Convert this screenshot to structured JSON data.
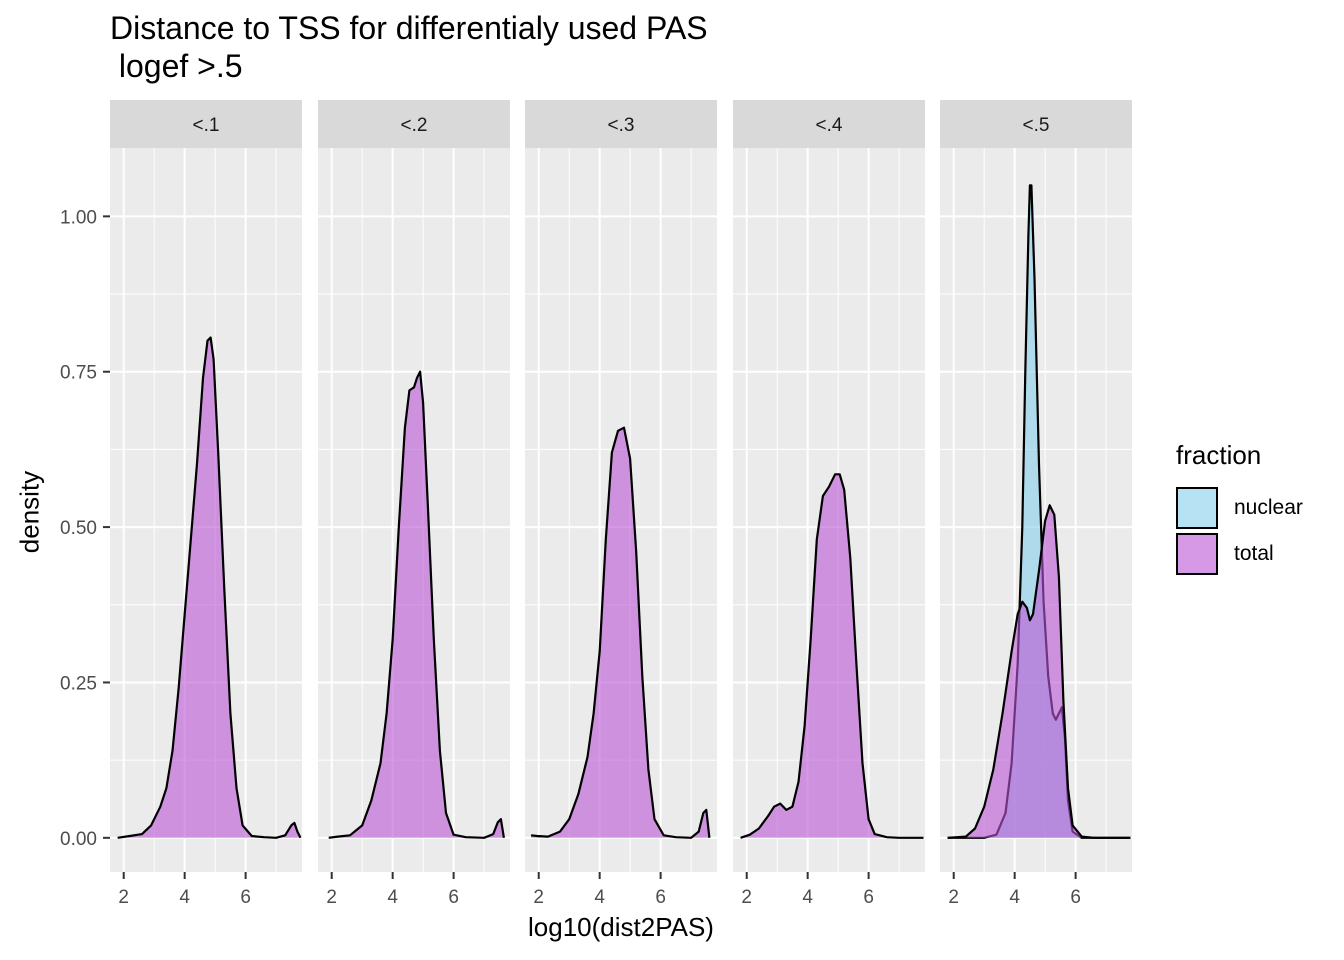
{
  "chart_data": {
    "type": "density",
    "title": "Distance to TSS for differentialy used PAS",
    "subtitle": "logef >.5",
    "xlabel": "log10(dist2PAS)",
    "ylabel": "density",
    "xlim": [
      1.55,
      7.85
    ],
    "ylim": [
      -0.055,
      1.11
    ],
    "x_ticks": [
      2,
      4,
      6
    ],
    "y_ticks": [
      0,
      0.25,
      0.5,
      0.75,
      1.0
    ],
    "y_tick_labels": [
      "0.00",
      "0.25",
      "0.50",
      "0.75",
      "1.00"
    ],
    "legend": {
      "title": "fraction",
      "position": "right",
      "entries": [
        {
          "name": "nuclear",
          "color": "#87CEEB"
        },
        {
          "name": "total",
          "color": "#BA55D3"
        }
      ]
    },
    "fill_alpha": 0.6,
    "panels": [
      {
        "label": "<.1",
        "series": [
          {
            "name": "total",
            "points": [
              [
                1.8,
                0
              ],
              [
                2.2,
                0.003
              ],
              [
                2.6,
                0.006
              ],
              [
                2.9,
                0.02
              ],
              [
                3.2,
                0.05
              ],
              [
                3.4,
                0.08
              ],
              [
                3.6,
                0.14
              ],
              [
                3.8,
                0.24
              ],
              [
                4.0,
                0.36
              ],
              [
                4.2,
                0.48
              ],
              [
                4.4,
                0.6
              ],
              [
                4.6,
                0.74
              ],
              [
                4.75,
                0.8
              ],
              [
                4.85,
                0.805
              ],
              [
                4.95,
                0.77
              ],
              [
                5.1,
                0.62
              ],
              [
                5.3,
                0.4
              ],
              [
                5.5,
                0.2
              ],
              [
                5.7,
                0.08
              ],
              [
                5.9,
                0.02
              ],
              [
                6.2,
                0.003
              ],
              [
                6.6,
                0.001
              ],
              [
                7.0,
                0
              ],
              [
                7.3,
                0.004
              ],
              [
                7.5,
                0.02
              ],
              [
                7.6,
                0.024
              ],
              [
                7.7,
                0.01
              ],
              [
                7.8,
                0
              ]
            ]
          }
        ]
      },
      {
        "label": "<.2",
        "series": [
          {
            "name": "total",
            "points": [
              [
                1.9,
                0
              ],
              [
                2.2,
                0.002
              ],
              [
                2.6,
                0.004
              ],
              [
                3.0,
                0.02
              ],
              [
                3.3,
                0.06
              ],
              [
                3.6,
                0.12
              ],
              [
                3.8,
                0.2
              ],
              [
                4.0,
                0.32
              ],
              [
                4.2,
                0.5
              ],
              [
                4.4,
                0.66
              ],
              [
                4.55,
                0.72
              ],
              [
                4.7,
                0.725
              ],
              [
                4.8,
                0.74
              ],
              [
                4.9,
                0.75
              ],
              [
                5.0,
                0.7
              ],
              [
                5.15,
                0.54
              ],
              [
                5.35,
                0.32
              ],
              [
                5.55,
                0.14
              ],
              [
                5.75,
                0.04
              ],
              [
                6.0,
                0.005
              ],
              [
                6.4,
                0.001
              ],
              [
                7.0,
                0
              ],
              [
                7.3,
                0.006
              ],
              [
                7.45,
                0.025
              ],
              [
                7.55,
                0.03
              ],
              [
                7.65,
                0
              ]
            ]
          }
        ]
      },
      {
        "label": "<.3",
        "series": [
          {
            "name": "total",
            "points": [
              [
                1.75,
                0.004
              ],
              [
                1.95,
                0.003
              ],
              [
                2.3,
                0.002
              ],
              [
                2.7,
                0.01
              ],
              [
                3.0,
                0.03
              ],
              [
                3.3,
                0.07
              ],
              [
                3.6,
                0.13
              ],
              [
                3.8,
                0.2
              ],
              [
                4.0,
                0.3
              ],
              [
                4.2,
                0.48
              ],
              [
                4.4,
                0.62
              ],
              [
                4.6,
                0.655
              ],
              [
                4.8,
                0.66
              ],
              [
                5.0,
                0.61
              ],
              [
                5.2,
                0.46
              ],
              [
                5.4,
                0.26
              ],
              [
                5.6,
                0.11
              ],
              [
                5.8,
                0.03
              ],
              [
                6.1,
                0.004
              ],
              [
                6.5,
                0.001
              ],
              [
                7.0,
                0
              ],
              [
                7.25,
                0.01
              ],
              [
                7.4,
                0.04
              ],
              [
                7.5,
                0.045
              ],
              [
                7.6,
                0
              ]
            ]
          }
        ]
      },
      {
        "label": "<.4",
        "series": [
          {
            "name": "total",
            "points": [
              [
                1.8,
                0
              ],
              [
                2.1,
                0.005
              ],
              [
                2.4,
                0.015
              ],
              [
                2.7,
                0.035
              ],
              [
                2.9,
                0.05
              ],
              [
                3.1,
                0.055
              ],
              [
                3.3,
                0.045
              ],
              [
                3.5,
                0.05
              ],
              [
                3.7,
                0.09
              ],
              [
                3.9,
                0.18
              ],
              [
                4.1,
                0.32
              ],
              [
                4.3,
                0.48
              ],
              [
                4.5,
                0.55
              ],
              [
                4.7,
                0.565
              ],
              [
                4.9,
                0.585
              ],
              [
                5.05,
                0.585
              ],
              [
                5.2,
                0.56
              ],
              [
                5.4,
                0.45
              ],
              [
                5.6,
                0.28
              ],
              [
                5.8,
                0.12
              ],
              [
                6.0,
                0.03
              ],
              [
                6.2,
                0.006
              ],
              [
                6.6,
                0.001
              ],
              [
                7.0,
                0
              ],
              [
                7.8,
                0
              ]
            ]
          }
        ]
      },
      {
        "label": "<.5",
        "series": [
          {
            "name": "nuclear",
            "points": [
              [
                1.8,
                0
              ],
              [
                3.0,
                0
              ],
              [
                3.4,
                0.005
              ],
              [
                3.7,
                0.04
              ],
              [
                3.9,
                0.12
              ],
              [
                4.1,
                0.28
              ],
              [
                4.25,
                0.5
              ],
              [
                4.35,
                0.75
              ],
              [
                4.45,
                0.97
              ],
              [
                4.5,
                1.05
              ],
              [
                4.55,
                1.05
              ],
              [
                4.65,
                0.9
              ],
              [
                4.8,
                0.6
              ],
              [
                4.95,
                0.38
              ],
              [
                5.1,
                0.26
              ],
              [
                5.25,
                0.2
              ],
              [
                5.35,
                0.19
              ],
              [
                5.45,
                0.2
              ],
              [
                5.55,
                0.21
              ],
              [
                5.65,
                0.16
              ],
              [
                5.75,
                0.06
              ],
              [
                5.9,
                0.01
              ],
              [
                6.2,
                0
              ],
              [
                7.8,
                0
              ]
            ]
          },
          {
            "name": "total",
            "points": [
              [
                1.8,
                0
              ],
              [
                2.4,
                0.002
              ],
              [
                2.7,
                0.015
              ],
              [
                3.0,
                0.05
              ],
              [
                3.3,
                0.11
              ],
              [
                3.6,
                0.2
              ],
              [
                3.9,
                0.3
              ],
              [
                4.1,
                0.36
              ],
              [
                4.25,
                0.38
              ],
              [
                4.4,
                0.37
              ],
              [
                4.5,
                0.35
              ],
              [
                4.6,
                0.36
              ],
              [
                4.8,
                0.43
              ],
              [
                5.0,
                0.51
              ],
              [
                5.15,
                0.535
              ],
              [
                5.3,
                0.52
              ],
              [
                5.45,
                0.42
              ],
              [
                5.6,
                0.22
              ],
              [
                5.75,
                0.08
              ],
              [
                5.9,
                0.02
              ],
              [
                6.2,
                0.002
              ],
              [
                6.6,
                0
              ],
              [
                7.8,
                0
              ]
            ]
          }
        ]
      }
    ]
  }
}
